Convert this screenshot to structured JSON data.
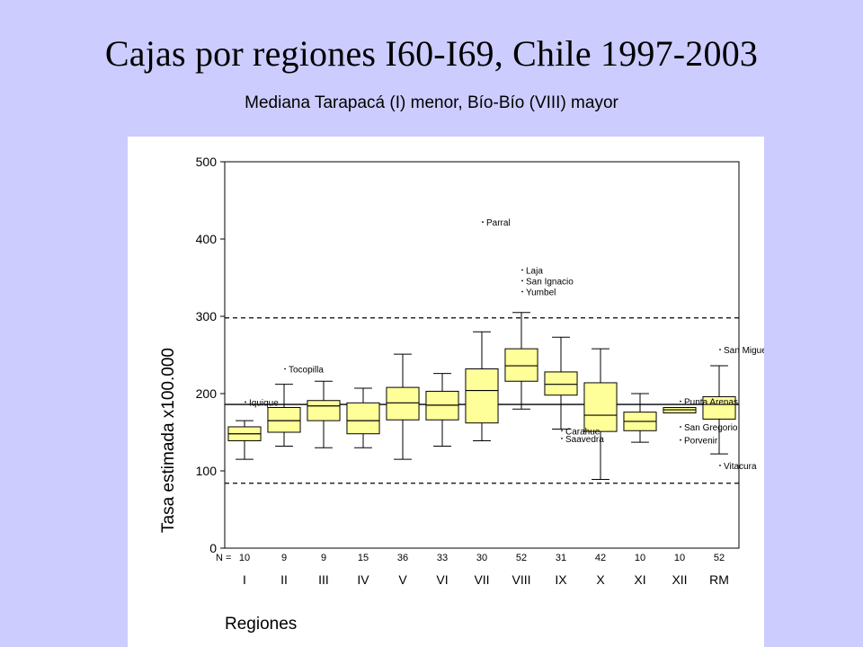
{
  "slide": {
    "title": "Cajas por regiones I60-I69, Chile 1997-2003",
    "subtitle": "Mediana Tarapacá (I) menor, Bío-Bío (VIII) mayor"
  },
  "chart_data": {
    "type": "boxplot",
    "ylabel": "Tasa estimada x100.000",
    "xlabel": "Regiones",
    "ylim": [
      0,
      500
    ],
    "yticks": [
      0,
      100,
      200,
      300,
      400,
      500
    ],
    "n_label": "N =",
    "reference_lines": [
      {
        "value": 186,
        "style": "solid"
      },
      {
        "value": 298,
        "style": "dashed"
      },
      {
        "value": 84,
        "style": "dashed"
      }
    ],
    "box_color": "#ffff99",
    "categories": [
      "I",
      "II",
      "III",
      "IV",
      "V",
      "VI",
      "VII",
      "VIII",
      "IX",
      "X",
      "XI",
      "XII",
      "RM"
    ],
    "n": [
      10,
      9,
      9,
      15,
      36,
      33,
      30,
      52,
      31,
      42,
      10,
      10,
      52
    ],
    "boxes": [
      {
        "whisker_low": 115,
        "q1": 139,
        "median": 148,
        "q3": 157,
        "whisker_high": 165
      },
      {
        "whisker_low": 132,
        "q1": 150,
        "median": 165,
        "q3": 182,
        "whisker_high": 212
      },
      {
        "whisker_low": 130,
        "q1": 165,
        "median": 184,
        "q3": 191,
        "whisker_high": 216
      },
      {
        "whisker_low": 130,
        "q1": 148,
        "median": 165,
        "q3": 188,
        "whisker_high": 207
      },
      {
        "whisker_low": 115,
        "q1": 166,
        "median": 188,
        "q3": 208,
        "whisker_high": 251
      },
      {
        "whisker_low": 132,
        "q1": 166,
        "median": 185,
        "q3": 203,
        "whisker_high": 226
      },
      {
        "whisker_low": 139,
        "q1": 162,
        "median": 204,
        "q3": 232,
        "whisker_high": 280
      },
      {
        "whisker_low": 180,
        "q1": 216,
        "median": 236,
        "q3": 258,
        "whisker_high": 305
      },
      {
        "whisker_low": 154,
        "q1": 198,
        "median": 212,
        "q3": 228,
        "whisker_high": 273
      },
      {
        "whisker_low": 89,
        "q1": 151,
        "median": 172,
        "q3": 214,
        "whisker_high": 258
      },
      {
        "whisker_low": 137,
        "q1": 152,
        "median": 164,
        "q3": 176,
        "whisker_high": 200
      },
      {
        "whisker_low": 175,
        "q1": 175,
        "median": 179,
        "q3": 182,
        "whisker_high": 182
      },
      {
        "whisker_low": 122,
        "q1": 167,
        "median": 186,
        "q3": 196,
        "whisker_high": 236
      }
    ],
    "outliers": [
      {
        "category": "I",
        "value": 189,
        "label": "Iquique"
      },
      {
        "category": "II",
        "value": 232,
        "label": "Tocopilla"
      },
      {
        "category": "VII",
        "value": 422,
        "label": "Parral"
      },
      {
        "category": "VIII",
        "value": 360,
        "label": "Laja"
      },
      {
        "category": "VIII",
        "value": 346,
        "label": "San Ignacio"
      },
      {
        "category": "VIII",
        "value": 332,
        "label": "Yumbel"
      },
      {
        "category": "IX",
        "value": 152,
        "label": "Carahue"
      },
      {
        "category": "IX",
        "value": 142,
        "label": "Saavedra"
      },
      {
        "category": "XII",
        "value": 190,
        "label": "Punta Arenas"
      },
      {
        "category": "XII",
        "value": 157,
        "label": "San Gregorio"
      },
      {
        "category": "XII",
        "value": 140,
        "label": "Porvenir"
      },
      {
        "category": "RM",
        "value": 257,
        "label": "San Miguel"
      },
      {
        "category": "RM",
        "value": 107,
        "label": "Vitacura"
      }
    ]
  }
}
